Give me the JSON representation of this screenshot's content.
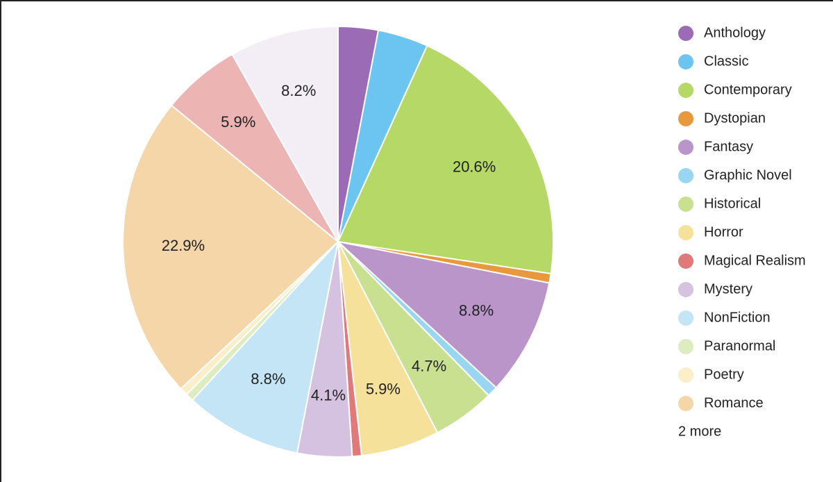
{
  "chart_data": {
    "type": "pie",
    "categories": [
      "Anthology",
      "Classic",
      "Contemporary",
      "Dystopian",
      "Fantasy",
      "Graphic Novel",
      "Historical",
      "Horror",
      "Magical Realism",
      "Mystery",
      "NonFiction",
      "Paranormal",
      "Poetry",
      "Romance",
      null,
      null
    ],
    "values": [
      3.0,
      3.8,
      20.6,
      0.7,
      8.8,
      0.8,
      4.7,
      5.9,
      0.7,
      4.1,
      8.8,
      0.6,
      0.6,
      22.9,
      5.9,
      8.2
    ],
    "value_labels": [
      null,
      null,
      "20.6%",
      null,
      "8.8%",
      null,
      "4.7%",
      "5.9%",
      null,
      "4.1%",
      "8.8%",
      null,
      null,
      "22.9%",
      "5.9%",
      "8.2%"
    ],
    "colors": [
      "#9c6bb5",
      "#6cc4f0",
      "#b5d867",
      "#e8993e",
      "#b995c9",
      "#99d6f2",
      "#c9e091",
      "#f6e19b",
      "#e07a7a",
      "#d5c2e0",
      "#c3e5f5",
      "#deedbf",
      "#fbeec8",
      "#f4d6a9",
      "#ecb5b4",
      "#f3eef6"
    ],
    "legend_more": "2 more"
  }
}
